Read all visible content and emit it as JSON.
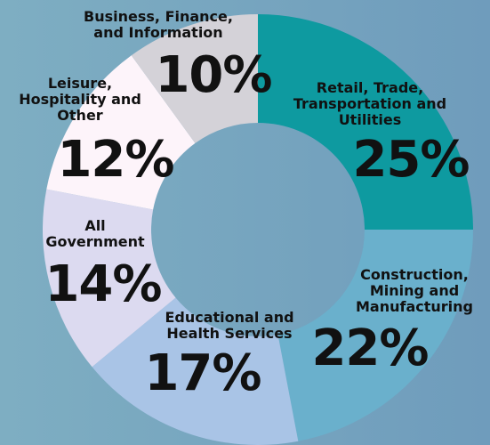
{
  "chart_data": {
    "type": "donut",
    "categories": [
      "Retail, Trade, Transportation and Utilities",
      "Construction, Mining and Manufacturing",
      "Educational and Health Services",
      "All Government",
      "Leisure, Hospitality and Other",
      "Business, Finance, and Information"
    ],
    "values": [
      25,
      22,
      17,
      14,
      12,
      10
    ],
    "value_labels": [
      "25%",
      "22%",
      "17%",
      "14%",
      "12%",
      "10%"
    ],
    "colors": [
      "#0e9aa0",
      "#6ab0cc",
      "#a9c4e6",
      "#dcdaf0",
      "#fdf4fa",
      "#d4d2d8"
    ]
  }
}
